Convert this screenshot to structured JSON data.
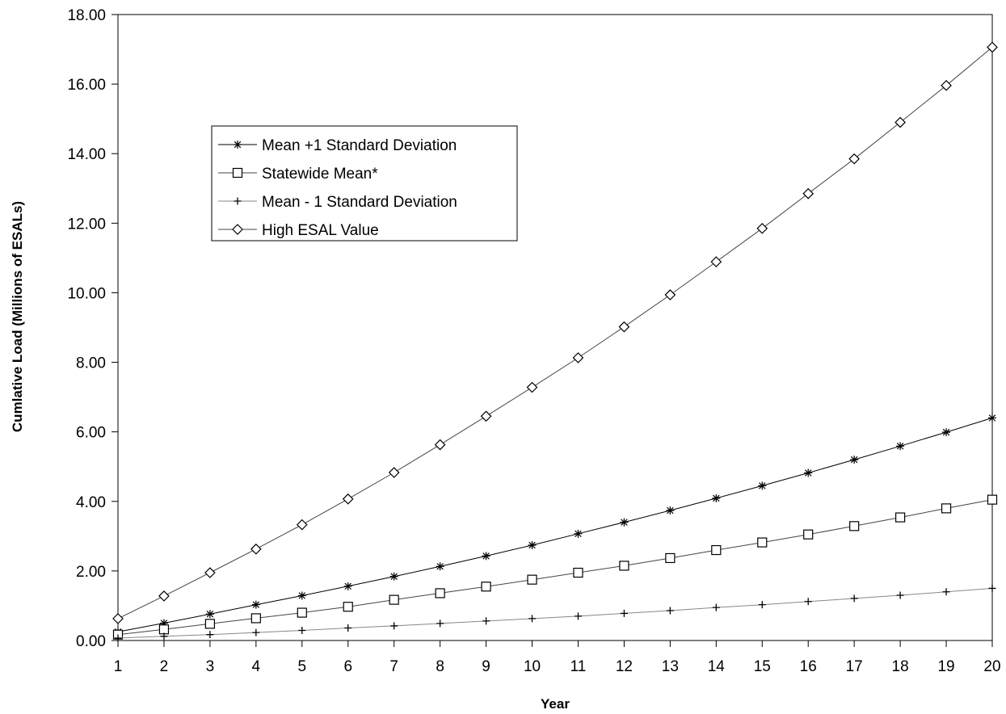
{
  "chart_data": {
    "type": "line",
    "title": "",
    "xlabel": "Year",
    "ylabel": "Cumlative Load (Millions of ESALs)",
    "x": [
      1,
      2,
      3,
      4,
      5,
      6,
      7,
      8,
      9,
      10,
      11,
      12,
      13,
      14,
      15,
      16,
      17,
      18,
      19,
      20
    ],
    "xlim": [
      1,
      20
    ],
    "ylim": [
      0,
      18
    ],
    "x_tick_labels": [
      "1",
      "2",
      "3",
      "4",
      "5",
      "6",
      "7",
      "8",
      "9",
      "10",
      "11",
      "12",
      "13",
      "14",
      "15",
      "16",
      "17",
      "18",
      "19",
      "20"
    ],
    "y_tick_values": [
      0,
      2,
      4,
      6,
      8,
      10,
      12,
      14,
      16,
      18
    ],
    "y_tick_labels": [
      "0.00",
      "2.00",
      "4.00",
      "6.00",
      "8.00",
      "10.00",
      "12.00",
      "14.00",
      "16.00",
      "18.00"
    ],
    "grid": false,
    "legend_position": "upper-left inside plot",
    "series": [
      {
        "name": "Mean +1 Standard Deviation",
        "marker": "asterisk",
        "color": "#000000",
        "values": [
          0.25,
          0.5,
          0.76,
          1.03,
          1.29,
          1.56,
          1.84,
          2.13,
          2.43,
          2.74,
          3.07,
          3.4,
          3.74,
          4.09,
          4.45,
          4.82,
          5.2,
          5.59,
          5.99,
          6.4
        ]
      },
      {
        "name": "Statewide Mean*",
        "marker": "square",
        "color": "#000000",
        "values": [
          0.17,
          0.32,
          0.48,
          0.64,
          0.8,
          0.97,
          1.17,
          1.36,
          1.55,
          1.75,
          1.95,
          2.15,
          2.37,
          2.6,
          2.82,
          3.05,
          3.29,
          3.54,
          3.8,
          4.05
        ]
      },
      {
        "name": "Mean - 1 Standard Deviation",
        "marker": "plus",
        "color": "#000000",
        "values": [
          0.07,
          0.12,
          0.17,
          0.23,
          0.29,
          0.36,
          0.42,
          0.49,
          0.56,
          0.63,
          0.7,
          0.78,
          0.86,
          0.95,
          1.03,
          1.12,
          1.21,
          1.3,
          1.4,
          1.5
        ]
      },
      {
        "name": "High ESAL Value",
        "marker": "diamond",
        "color": "#000000",
        "values": [
          0.63,
          1.28,
          1.95,
          2.63,
          3.33,
          4.07,
          4.83,
          5.63,
          6.45,
          7.28,
          8.13,
          9.02,
          9.94,
          10.89,
          11.85,
          12.85,
          13.85,
          14.9,
          15.96,
          17.06
        ]
      }
    ]
  }
}
